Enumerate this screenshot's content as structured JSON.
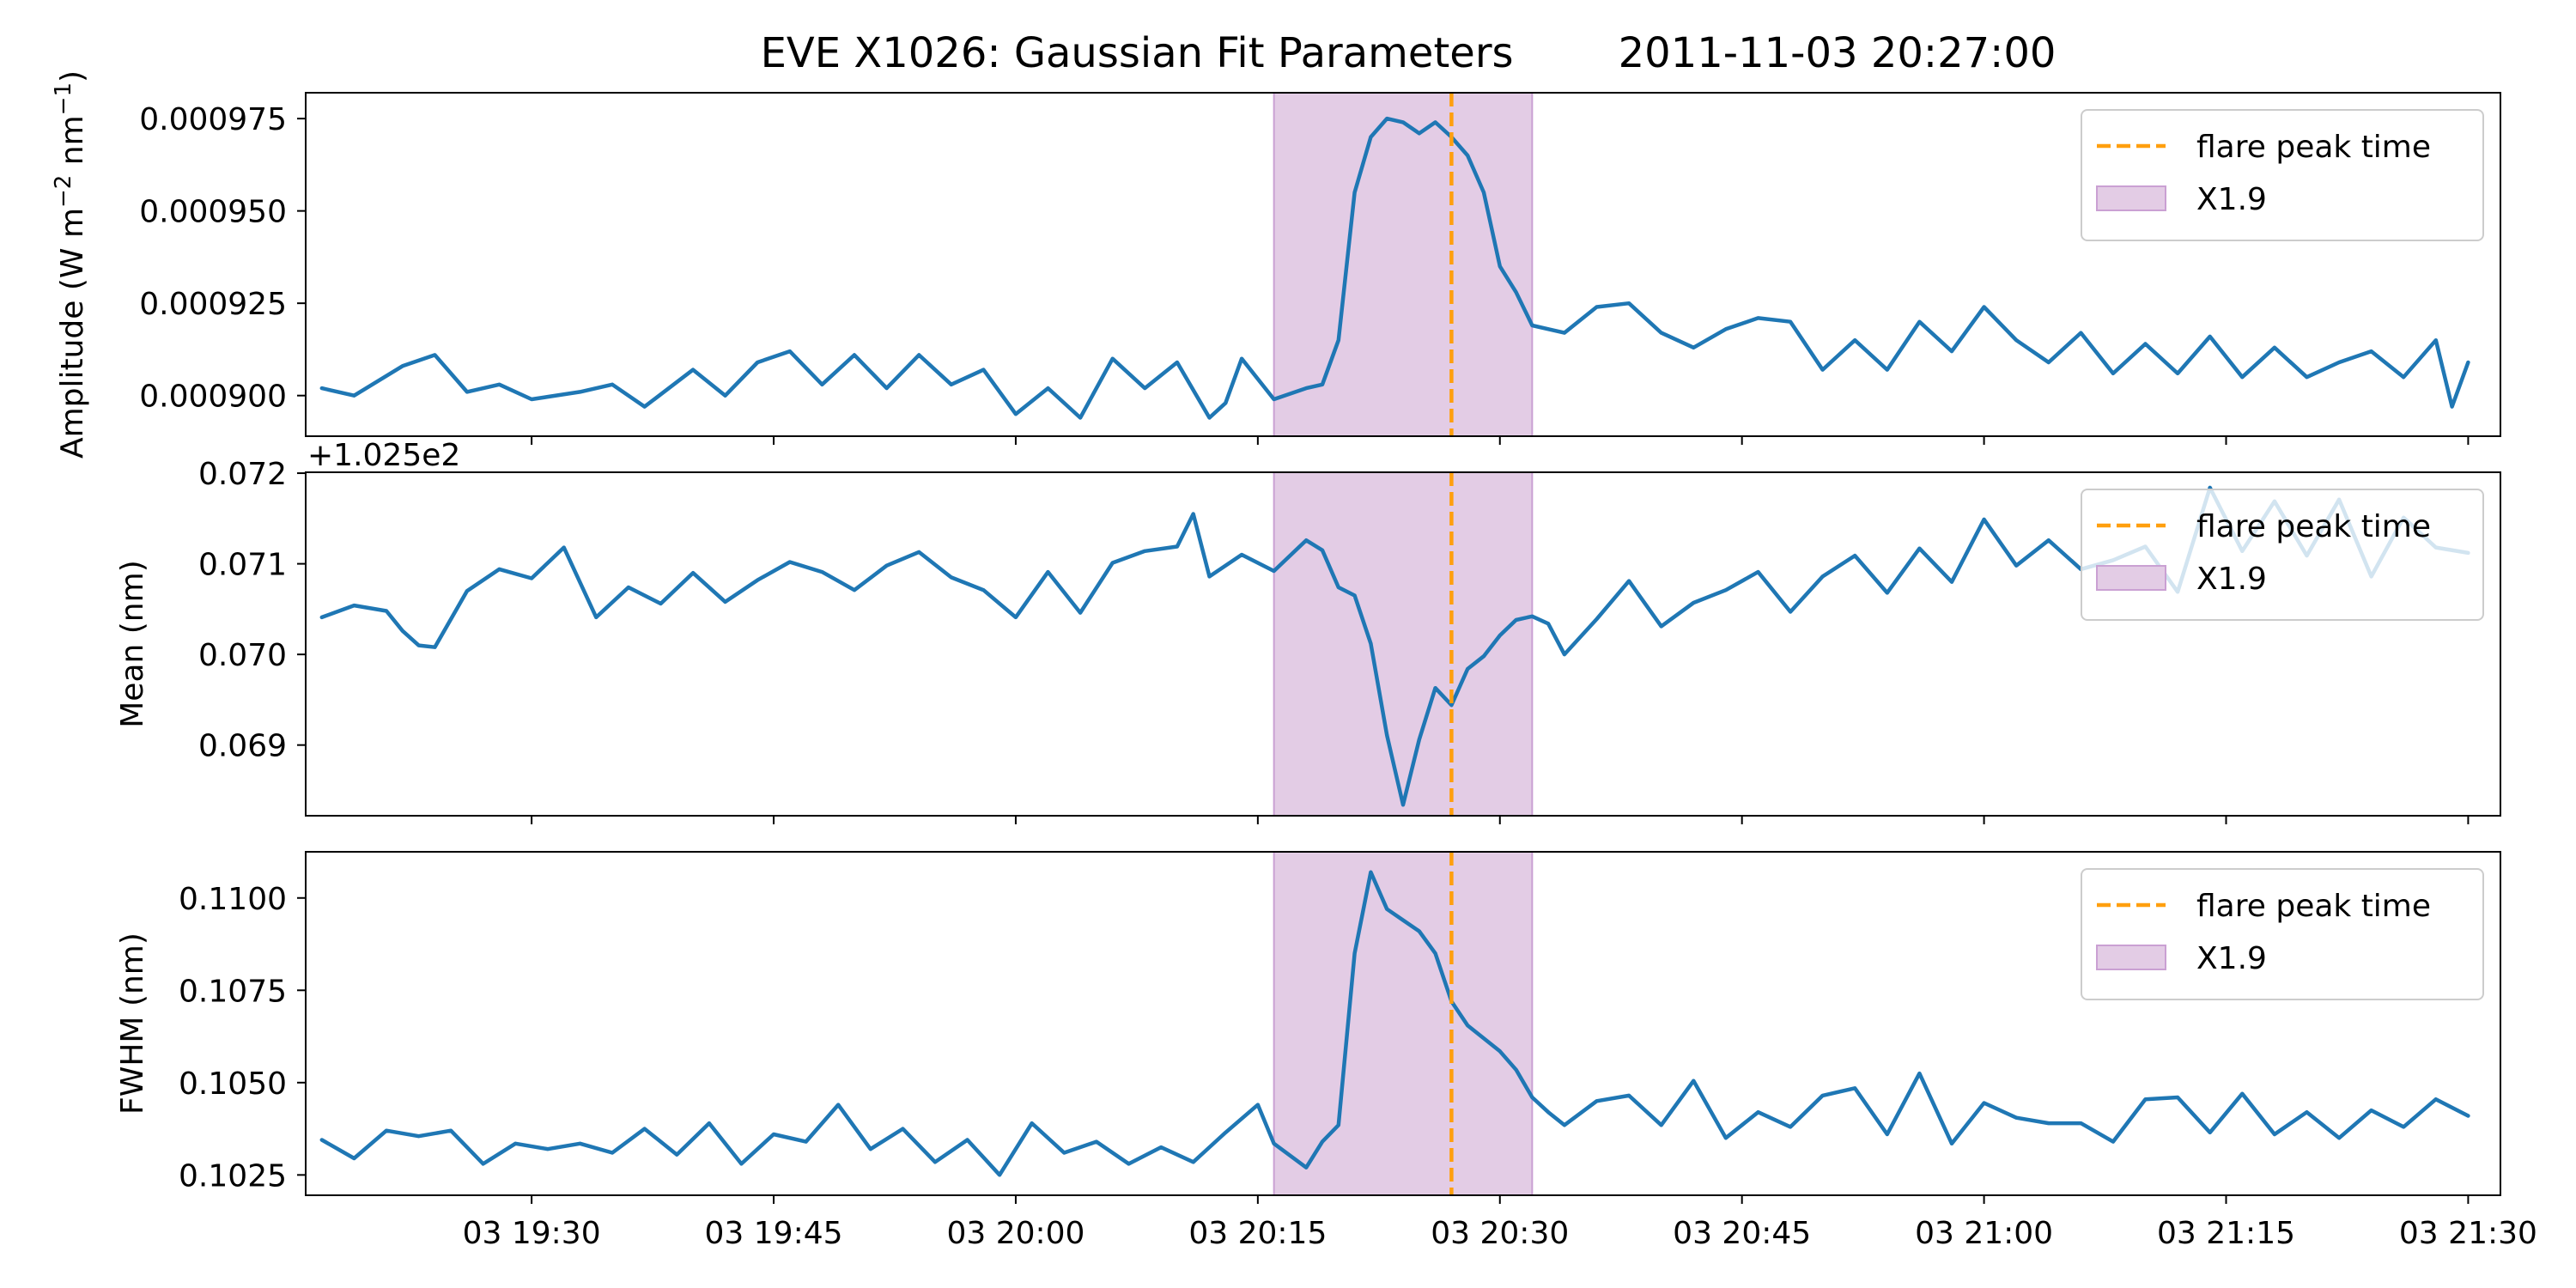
{
  "chart_data": {
    "type": "line",
    "title": "EVE X1026: Gaussian Fit Parameters        2011-11-03 20:27:00",
    "x_tick_labels": [
      "03 19:30",
      "03 19:45",
      "03 20:00",
      "03 20:15",
      "03 20:30",
      "03 20:45",
      "03 21:00",
      "03 21:15",
      "03 21:30"
    ],
    "x_tick_times": [
      "2011-11-03 19:30",
      "2011-11-03 19:45",
      "2011-11-03 20:00",
      "2011-11-03 20:15",
      "2011-11-03 20:30",
      "2011-11-03 20:45",
      "2011-11-03 21:00",
      "2011-11-03 21:15",
      "2011-11-03 21:30"
    ],
    "x_range": [
      "2011-11-03 19:16",
      "2011-11-03 21:32"
    ],
    "flare_peak_time": "2011-11-03 20:27",
    "flare_shade": {
      "start": "2011-11-03 20:16",
      "end": "2011-11-03 20:32"
    },
    "colors": {
      "series": "#1f77b4",
      "peak_line": "#ff9f0e",
      "shade_fill": "#e3cce5",
      "shade_edge": "#caa0d3"
    },
    "legend": {
      "placement": "upper right",
      "peak_label": "flare peak time",
      "shade_label": "X1.9"
    },
    "panels": [
      {
        "id": "amplitude",
        "ylabel_main": "Amplitude (W m",
        "ylabel_exp1": "−2",
        "ylabel_mid": " nm",
        "ylabel_exp2": "−1",
        "ylabel_end": ")",
        "ylim": [
          0.000889,
          0.000982
        ],
        "y_ticks": [
          0.0009,
          0.000925,
          0.00095,
          0.000975
        ],
        "y_tick_labels": [
          "0.000900",
          "0.000925",
          "0.000950",
          "0.000975"
        ],
        "offset_text": "",
        "points": [
          [
            "19:17",
            0.000902
          ],
          [
            "19:19",
            0.0009
          ],
          [
            "19:22",
            0.000908
          ],
          [
            "19:24",
            0.000911
          ],
          [
            "19:26",
            0.000901
          ],
          [
            "19:28",
            0.000903
          ],
          [
            "19:30",
            0.000899
          ],
          [
            "19:33",
            0.000901
          ],
          [
            "19:35",
            0.000903
          ],
          [
            "19:37",
            0.000897
          ],
          [
            "19:40",
            0.000907
          ],
          [
            "19:42",
            0.0009
          ],
          [
            "19:44",
            0.000909
          ],
          [
            "19:46",
            0.000912
          ],
          [
            "19:48",
            0.000903
          ],
          [
            "19:50",
            0.000911
          ],
          [
            "19:52",
            0.000902
          ],
          [
            "19:54",
            0.000911
          ],
          [
            "19:56",
            0.000903
          ],
          [
            "19:58",
            0.000907
          ],
          [
            "20:00",
            0.000895
          ],
          [
            "20:02",
            0.000902
          ],
          [
            "20:04",
            0.000894
          ],
          [
            "20:06",
            0.00091
          ],
          [
            "20:08",
            0.000902
          ],
          [
            "20:10",
            0.000909
          ],
          [
            "20:12",
            0.000894
          ],
          [
            "20:13",
            0.000898
          ],
          [
            "20:14",
            0.00091
          ],
          [
            "20:16",
            0.000899
          ],
          [
            "20:18",
            0.000902
          ],
          [
            "20:19",
            0.000903
          ],
          [
            "20:20",
            0.000915
          ],
          [
            "20:21",
            0.000955
          ],
          [
            "20:22",
            0.00097
          ],
          [
            "20:23",
            0.000975
          ],
          [
            "20:24",
            0.000974
          ],
          [
            "20:25",
            0.000971
          ],
          [
            "20:26",
            0.000974
          ],
          [
            "20:27",
            0.00097
          ],
          [
            "20:28",
            0.000965
          ],
          [
            "20:29",
            0.000955
          ],
          [
            "20:30",
            0.000935
          ],
          [
            "20:31",
            0.000928
          ],
          [
            "20:32",
            0.000919
          ],
          [
            "20:34",
            0.000917
          ],
          [
            "20:36",
            0.000924
          ],
          [
            "20:38",
            0.000925
          ],
          [
            "20:40",
            0.000917
          ],
          [
            "20:42",
            0.000913
          ],
          [
            "20:44",
            0.000918
          ],
          [
            "20:46",
            0.000921
          ],
          [
            "20:48",
            0.00092
          ],
          [
            "20:50",
            0.000907
          ],
          [
            "20:52",
            0.000915
          ],
          [
            "20:54",
            0.000907
          ],
          [
            "20:56",
            0.00092
          ],
          [
            "20:58",
            0.000912
          ],
          [
            "21:00",
            0.000924
          ],
          [
            "21:02",
            0.000915
          ],
          [
            "21:04",
            0.000909
          ],
          [
            "21:06",
            0.000917
          ],
          [
            "21:08",
            0.000906
          ],
          [
            "21:10",
            0.000914
          ],
          [
            "21:12",
            0.000906
          ],
          [
            "21:14",
            0.000916
          ],
          [
            "21:16",
            0.000905
          ],
          [
            "21:18",
            0.000913
          ],
          [
            "21:20",
            0.000905
          ],
          [
            "21:22",
            0.000909
          ],
          [
            "21:24",
            0.000912
          ],
          [
            "21:26",
            0.000905
          ],
          [
            "21:28",
            0.000915
          ],
          [
            "21:29",
            0.000897
          ],
          [
            "21:30",
            0.000909
          ]
        ]
      },
      {
        "id": "mean",
        "ylabel": "Mean (nm)",
        "ylim": [
          0.06822,
          0.07201
        ],
        "y_ticks": [
          0.069,
          0.07,
          0.071,
          0.072
        ],
        "y_tick_labels": [
          "0.069",
          "0.070",
          "0.071",
          "0.072"
        ],
        "offset_text": "+1.025e2",
        "points": [
          [
            "19:17",
            0.07041
          ],
          [
            "19:19",
            0.07054
          ],
          [
            "19:21",
            0.07048
          ],
          [
            "19:22",
            0.07026
          ],
          [
            "19:23",
            0.0701
          ],
          [
            "19:24",
            0.07008
          ],
          [
            "19:26",
            0.0707
          ],
          [
            "19:28",
            0.07094
          ],
          [
            "19:30",
            0.07084
          ],
          [
            "19:32",
            0.07118
          ],
          [
            "19:34",
            0.07041
          ],
          [
            "19:36",
            0.07074
          ],
          [
            "19:38",
            0.07056
          ],
          [
            "19:40",
            0.0709
          ],
          [
            "19:42",
            0.07058
          ],
          [
            "19:44",
            0.07082
          ],
          [
            "19:46",
            0.07102
          ],
          [
            "19:48",
            0.07091
          ],
          [
            "19:50",
            0.07071
          ],
          [
            "19:52",
            0.07098
          ],
          [
            "19:54",
            0.07113
          ],
          [
            "19:56",
            0.07085
          ],
          [
            "19:58",
            0.07071
          ],
          [
            "20:00",
            0.07041
          ],
          [
            "20:02",
            0.07091
          ],
          [
            "20:04",
            0.07046
          ],
          [
            "20:06",
            0.07101
          ],
          [
            "20:08",
            0.07114
          ],
          [
            "20:10",
            0.07119
          ],
          [
            "20:11",
            0.07155
          ],
          [
            "20:12",
            0.07086
          ],
          [
            "20:14",
            0.0711
          ],
          [
            "20:16",
            0.07092
          ],
          [
            "20:18",
            0.07126
          ],
          [
            "20:19",
            0.07115
          ],
          [
            "20:20",
            0.07074
          ],
          [
            "20:21",
            0.07065
          ],
          [
            "20:22",
            0.07012
          ],
          [
            "20:23",
            0.06911
          ],
          [
            "20:24",
            0.06834
          ],
          [
            "20:25",
            0.06906
          ],
          [
            "20:26",
            0.06963
          ],
          [
            "20:27",
            0.06944
          ],
          [
            "20:28",
            0.06984
          ],
          [
            "20:29",
            0.06998
          ],
          [
            "20:30",
            0.07021
          ],
          [
            "20:31",
            0.07038
          ],
          [
            "20:32",
            0.07042
          ],
          [
            "20:33",
            0.07034
          ],
          [
            "20:34",
            0.07
          ],
          [
            "20:36",
            0.07039
          ],
          [
            "20:38",
            0.07081
          ],
          [
            "20:40",
            0.07031
          ],
          [
            "20:42",
            0.07057
          ],
          [
            "20:44",
            0.07071
          ],
          [
            "20:46",
            0.07091
          ],
          [
            "20:48",
            0.07047
          ],
          [
            "20:50",
            0.07086
          ],
          [
            "20:52",
            0.07109
          ],
          [
            "20:54",
            0.07068
          ],
          [
            "20:56",
            0.07117
          ],
          [
            "20:58",
            0.0708
          ],
          [
            "21:00",
            0.07149
          ],
          [
            "21:02",
            0.07098
          ],
          [
            "21:04",
            0.07126
          ],
          [
            "21:06",
            0.07094
          ],
          [
            "21:08",
            0.07104
          ],
          [
            "21:10",
            0.07119
          ],
          [
            "21:12",
            0.07069
          ],
          [
            "21:14",
            0.07184
          ],
          [
            "21:16",
            0.07114
          ],
          [
            "21:18",
            0.07169
          ],
          [
            "21:20",
            0.07109
          ],
          [
            "21:22",
            0.07171
          ],
          [
            "21:24",
            0.07086
          ],
          [
            "21:26",
            0.07151
          ],
          [
            "21:28",
            0.07118
          ],
          [
            "21:30",
            0.07112
          ]
        ]
      },
      {
        "id": "fwhm",
        "ylabel": "FWHM (nm)",
        "ylim": [
          0.10195,
          0.11125
        ],
        "y_ticks": [
          0.1025,
          0.105,
          0.1075,
          0.11
        ],
        "y_tick_labels": [
          "0.1025",
          "0.1050",
          "0.1075",
          "0.1100"
        ],
        "offset_text": "",
        "points": [
          [
            "19:17",
            0.10345
          ],
          [
            "19:19",
            0.10295
          ],
          [
            "19:21",
            0.1037
          ],
          [
            "19:23",
            0.10355
          ],
          [
            "19:25",
            0.1037
          ],
          [
            "19:27",
            0.1028
          ],
          [
            "19:29",
            0.10335
          ],
          [
            "19:31",
            0.1032
          ],
          [
            "19:33",
            0.10335
          ],
          [
            "19:35",
            0.1031
          ],
          [
            "19:37",
            0.10375
          ],
          [
            "19:39",
            0.10305
          ],
          [
            "19:41",
            0.1039
          ],
          [
            "19:43",
            0.1028
          ],
          [
            "19:45",
            0.1036
          ],
          [
            "19:47",
            0.1034
          ],
          [
            "19:49",
            0.1044
          ],
          [
            "19:51",
            0.1032
          ],
          [
            "19:53",
            0.10375
          ],
          [
            "19:55",
            0.10285
          ],
          [
            "19:57",
            0.10345
          ],
          [
            "19:59",
            0.1025
          ],
          [
            "20:01",
            0.1039
          ],
          [
            "20:03",
            0.1031
          ],
          [
            "20:05",
            0.1034
          ],
          [
            "20:07",
            0.1028
          ],
          [
            "20:09",
            0.10325
          ],
          [
            "20:11",
            0.10285
          ],
          [
            "20:13",
            0.10365
          ],
          [
            "20:15",
            0.1044
          ],
          [
            "20:16",
            0.10335
          ],
          [
            "20:18",
            0.1027
          ],
          [
            "20:19",
            0.1034
          ],
          [
            "20:20",
            0.10385
          ],
          [
            "20:21",
            0.1085
          ],
          [
            "20:22",
            0.1107
          ],
          [
            "20:23",
            0.1097
          ],
          [
            "20:24",
            0.1094
          ],
          [
            "20:25",
            0.1091
          ],
          [
            "20:26",
            0.1085
          ],
          [
            "20:27",
            0.1072
          ],
          [
            "20:28",
            0.10655
          ],
          [
            "20:29",
            0.1062
          ],
          [
            "20:30",
            0.10585
          ],
          [
            "20:31",
            0.10535
          ],
          [
            "20:32",
            0.1046
          ],
          [
            "20:33",
            0.1042
          ],
          [
            "20:34",
            0.10385
          ],
          [
            "20:36",
            0.1045
          ],
          [
            "20:38",
            0.10465
          ],
          [
            "20:40",
            0.10385
          ],
          [
            "20:42",
            0.10505
          ],
          [
            "20:44",
            0.1035
          ],
          [
            "20:46",
            0.1042
          ],
          [
            "20:48",
            0.1038
          ],
          [
            "20:50",
            0.10465
          ],
          [
            "20:52",
            0.10485
          ],
          [
            "20:54",
            0.1036
          ],
          [
            "20:56",
            0.10525
          ],
          [
            "20:58",
            0.10335
          ],
          [
            "21:00",
            0.10445
          ],
          [
            "21:02",
            0.10405
          ],
          [
            "21:04",
            0.1039
          ],
          [
            "21:06",
            0.1039
          ],
          [
            "21:08",
            0.1034
          ],
          [
            "21:10",
            0.10455
          ],
          [
            "21:12",
            0.1046
          ],
          [
            "21:14",
            0.10365
          ],
          [
            "21:16",
            0.1047
          ],
          [
            "21:18",
            0.1036
          ],
          [
            "21:20",
            0.1042
          ],
          [
            "21:22",
            0.1035
          ],
          [
            "21:24",
            0.10425
          ],
          [
            "21:26",
            0.1038
          ],
          [
            "21:28",
            0.10455
          ],
          [
            "21:30",
            0.1041
          ]
        ]
      }
    ]
  }
}
